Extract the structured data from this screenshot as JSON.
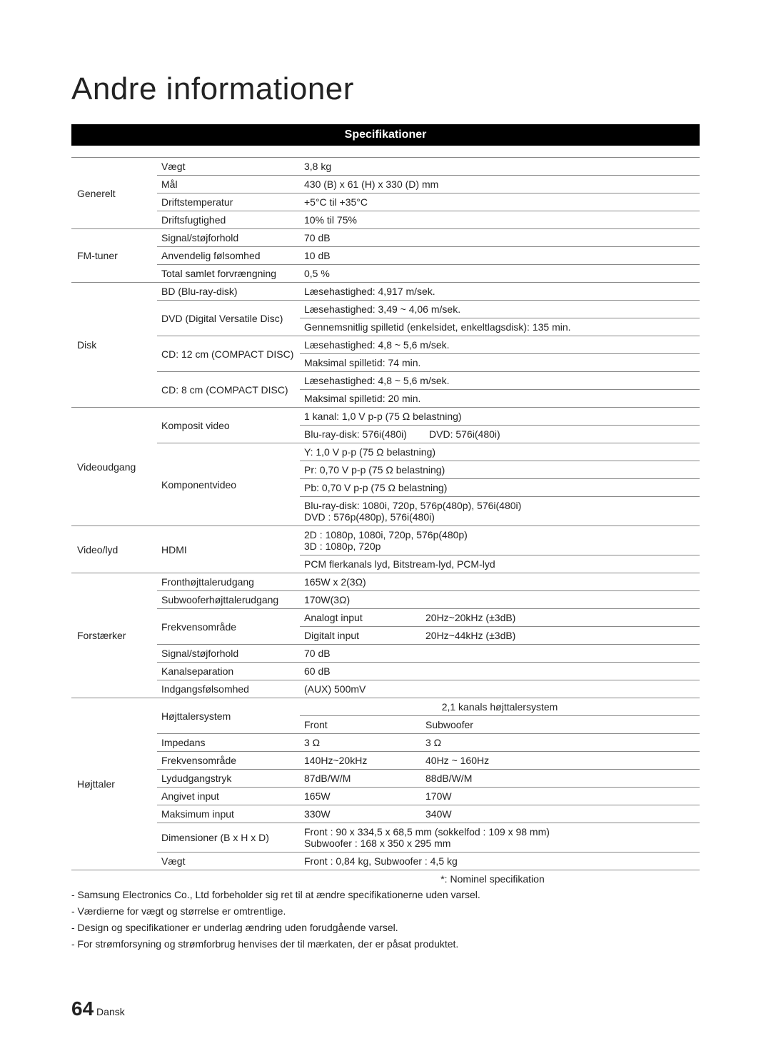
{
  "title": "Andre informationer",
  "section_header": "Specifikationer",
  "categories": {
    "generelt": "Generelt",
    "fm": "FM-tuner",
    "disk": "Disk",
    "video": "Videoudgang",
    "videoaudio": "Video/lyd",
    "amp": "Forstærker",
    "speaker": "Højttaler"
  },
  "rows": {
    "g_weight_l": "Vægt",
    "g_weight_v": "3,8 kg",
    "g_dim_l": "Mål",
    "g_dim_v": "430 (B) x 61 (H) x 330 (D) mm",
    "g_temp_l": "Driftstemperatur",
    "g_temp_v": "+5°C til +35°C",
    "g_hum_l": "Driftsfugtighed",
    "g_hum_v": "10% til 75%",
    "fm_sn_l": "Signal/støjforhold",
    "fm_sn_v": "70 dB",
    "fm_sens_l": "Anvendelig følsomhed",
    "fm_sens_v": "10 dB",
    "fm_thd_l": "Total samlet forvrængning",
    "fm_thd_v": "0,5 %",
    "d_bd_l": "BD (Blu-ray-disk)",
    "d_bd_v": "Læsehastighed: 4,917 m/sek.",
    "d_dvd_l": "DVD (Digital Versatile Disc)",
    "d_dvd_v1": "Læsehastighed: 3,49 ~ 4,06 m/sek.",
    "d_dvd_v2": "Gennemsnitlig spilletid (enkelsidet, enkeltlagsdisk): 135 min.",
    "d_cd12_l": "CD: 12 cm (COMPACT DISC)",
    "d_cd12_v1": "Læsehastighed: 4,8 ~ 5,6 m/sek.",
    "d_cd12_v2": "Maksimal spilletid: 74 min.",
    "d_cd8_l": "CD: 8 cm (COMPACT DISC)",
    "d_cd8_v1": "Læsehastighed: 4,8 ~ 5,6 m/sek.",
    "d_cd8_v2": "Maksimal spilletid: 20 min.",
    "v_comp_l": "Komposit video",
    "v_comp_v1": "1 kanal: 1,0 V p-p (75 Ω belastning)",
    "v_comp_v2": "Blu-ray-disk: 576i(480i)        DVD: 576i(480i)",
    "v_compn_l": "Komponentvideo",
    "v_compn_v1": "Y: 1,0 V p-p (75 Ω belastning)",
    "v_compn_v2": "Pr: 0,70 V p-p (75 Ω belastning)",
    "v_compn_v3": "Pb: 0,70 V p-p (75 Ω belastning)",
    "v_compn_v4a": "Blu-ray-disk: 1080i, 720p, 576p(480p), 576i(480i)",
    "v_compn_v4b": "DVD : 576p(480p), 576i(480i)",
    "va_hdmi_l": "HDMI",
    "va_hdmi_v1a": "2D : 1080p, 1080i, 720p, 576p(480p)",
    "va_hdmi_v1b": "3D : 1080p, 720p",
    "va_hdmi_v2": "PCM flerkanals lyd, Bitstream-lyd, PCM-lyd",
    "a_front_l": "Fronthøjttalerudgang",
    "a_front_v": "165W x 2(3Ω)",
    "a_sub_l": "Subwooferhøjttalerudgang",
    "a_sub_v": "170W(3Ω)",
    "a_freq_l": "Frekvensområde",
    "a_freq_a_l": "Analogt input",
    "a_freq_a_v": "20Hz~20kHz (±3dB)",
    "a_freq_d_l": "Digitalt input",
    "a_freq_d_v": "20Hz~44kHz (±3dB)",
    "a_sn_l": "Signal/støjforhold",
    "a_sn_v": "70 dB",
    "a_sep_l": "Kanalseparation",
    "a_sep_v": "60 dB",
    "a_isens_l": "Indgangsfølsomhed",
    "a_isens_v": "(AUX) 500mV",
    "s_sys_l": "Højttalersystem",
    "s_sys_head": "2,1 kanals højttalersystem",
    "s_sys_front": "Front",
    "s_sys_sub": "Subwoofer",
    "s_imp_l": "Impedans",
    "s_imp_f": "3 Ω",
    "s_imp_s": "3 Ω",
    "s_freq_l": "Frekvensområde",
    "s_freq_f": "140Hz~20kHz",
    "s_freq_s": "40Hz ~ 160Hz",
    "s_press_l": "Lydudgangstryk",
    "s_press_f": "87dB/W/M",
    "s_press_s": "88dB/W/M",
    "s_rated_l": "Angivet input",
    "s_rated_f": "165W",
    "s_rated_s": "170W",
    "s_max_l": "Maksimum input",
    "s_max_f": "330W",
    "s_max_s": "340W",
    "s_dim_l": "Dimensioner (B x H x D)",
    "s_dim_v1": "Front : 90 x 334,5 x 68,5 mm (sokkelfod : 109 x 98 mm)",
    "s_dim_v2": "Subwoofer : 168 x 350 x 295 mm",
    "s_weight_l": "Vægt",
    "s_weight_v": "Front : 0,84 kg,  Subwoofer : 4,5 kg"
  },
  "footnote": "*: Nominel specifikation",
  "notes": [
    "- Samsung Electronics Co., Ltd forbeholder sig ret til at ændre specifikationerne uden varsel.",
    "- Værdierne for vægt og størrelse er omtrentlige.",
    "- Design og specifikationer er underlag ændring uden forudgående varsel.",
    "- For strømforsyning og strømforbrug henvises der til mærkaten, der er påsat produktet."
  ],
  "footer": {
    "page": "64",
    "lang": "Dansk"
  }
}
